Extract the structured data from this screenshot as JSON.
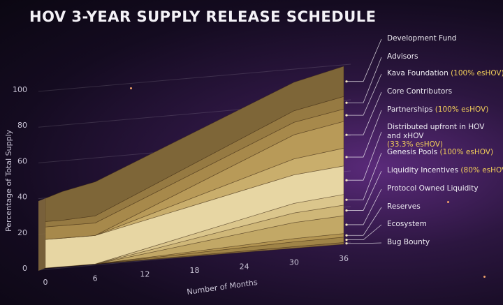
{
  "chart_data": {
    "type": "area",
    "title": "HOV 3-YEAR SUPPLY RELEASE SCHEDULE",
    "xlabel": "Number of Months",
    "ylabel": "Percentage of Total Supply",
    "x_ticks": [
      "0",
      "6",
      "12",
      "18",
      "24",
      "30",
      "36"
    ],
    "y_ticks": [
      "0",
      "20",
      "40",
      "60",
      "80",
      "100"
    ],
    "ylim": [
      0,
      100
    ],
    "xlim": [
      0,
      36
    ],
    "stacked": true,
    "x": [
      0,
      2,
      6,
      30,
      36
    ],
    "series": [
      {
        "name": "Bug Bounty",
        "values": [
          0,
          0,
          0,
          0.9,
          1
        ]
      },
      {
        "name": "Ecosystem",
        "values": [
          0,
          0,
          0,
          2.7,
          3
        ]
      },
      {
        "name": "Reserves",
        "values": [
          0,
          0,
          0,
          1.8,
          2
        ]
      },
      {
        "name": "Protocol Owned Liquidity",
        "values": [
          0,
          0,
          0,
          9,
          10
        ]
      },
      {
        "name": "Liquidity Incentives",
        "values": [
          0,
          0,
          0,
          5.4,
          6
        ]
      },
      {
        "name": "Genesis Pools",
        "values": [
          0,
          0,
          0,
          5.4,
          6
        ]
      },
      {
        "name": "Distributed upfront in HOV and xHOV",
        "values": [
          16,
          16,
          16,
          16,
          16
        ]
      },
      {
        "name": "Partnerships",
        "values": [
          0,
          0,
          0,
          9,
          10
        ]
      },
      {
        "name": "Core Contributors",
        "values": [
          0,
          0,
          0,
          13.5,
          15
        ]
      },
      {
        "name": "Kava Foundation",
        "values": [
          7,
          7,
          7,
          7,
          7
        ]
      },
      {
        "name": "Advisors",
        "values": [
          3,
          3,
          4,
          6.5,
          7
        ]
      },
      {
        "name": "Development Fund",
        "values": [
          13,
          16,
          19,
          16,
          17
        ]
      }
    ],
    "legend": [
      {
        "label": "Development Fund",
        "note": ""
      },
      {
        "label": "Advisors",
        "note": ""
      },
      {
        "label": "Kava Foundation",
        "note": "(100% esHOV)"
      },
      {
        "label": "Core Contributors",
        "note": ""
      },
      {
        "label": "Partnerships",
        "note": "(100% esHOV)"
      },
      {
        "label": "Distributed upfront in HOV and xHOV",
        "note": "(33.3% esHOV)"
      },
      {
        "label": "Genesis Pools",
        "note": "(100% esHOV)"
      },
      {
        "label": "Liquidity Incentives",
        "note": "(80% esHOV)"
      },
      {
        "label": "Protocol Owned Liquidity",
        "note": ""
      },
      {
        "label": "Reserves",
        "note": ""
      },
      {
        "label": "Ecosystem",
        "note": ""
      },
      {
        "label": "Bug Bounty",
        "note": ""
      }
    ],
    "legend_position": "right",
    "colors": {
      "Bug Bounty": "#8c6f3f",
      "Ecosystem": "#a08447",
      "Reserves": "#b39552",
      "Protocol Owned Liquidity": "#c2a866",
      "Liquidity Incentives": "#cfb778",
      "Genesis Pools": "#dbc68c",
      "Distributed upfront in HOV and xHOV": "#e7d6a3",
      "Partnerships": "#c9ae6c",
      "Core Contributors": "#b89a58",
      "Kava Foundation": "#a7894b",
      "Advisors": "#967a42",
      "Development Fund": "#7e6638",
      "highlight": "#f3cf5a",
      "text": "#f0eef4"
    }
  }
}
